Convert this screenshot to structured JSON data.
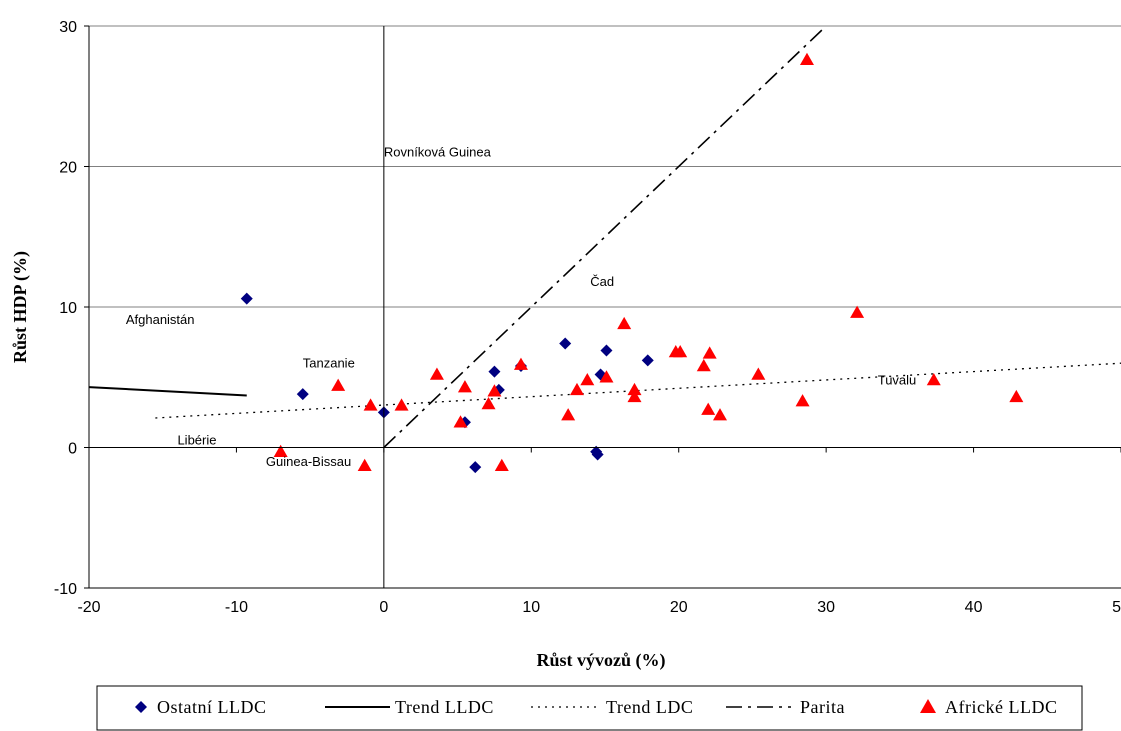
{
  "chart_data": {
    "type": "scatter",
    "xlabel": "Růst vývozů (%)",
    "ylabel": "Růst HDP (%)",
    "xlim": [
      -20,
      50
    ],
    "ylim": [
      -10,
      30
    ],
    "xticks": [
      -20,
      -10,
      0,
      10,
      20,
      30,
      40,
      50
    ],
    "yticks": [
      -10,
      0,
      10,
      20,
      30
    ],
    "xtick_labels": [
      "-20",
      "-10",
      "0",
      "10",
      "20",
      "30",
      "40",
      "50"
    ],
    "ytick_labels": [
      "-10",
      "0",
      "10",
      "20",
      "30"
    ],
    "grid": "horizontal",
    "legend_position": "bottom",
    "colors": {
      "ostatni": "#000080",
      "africke": "#ff0000",
      "lines": "#000000"
    },
    "series": [
      {
        "name": "Ostatní LLDC",
        "marker": "diamond",
        "points": [
          [
            -9.3,
            10.6
          ],
          [
            -5.5,
            3.8
          ],
          [
            0,
            2.5
          ],
          [
            5.5,
            1.8
          ],
          [
            6.2,
            -1.4
          ],
          [
            7.5,
            5.4
          ],
          [
            7.8,
            4.1
          ],
          [
            9.3,
            5.8
          ],
          [
            12.3,
            7.4
          ],
          [
            14.4,
            -0.3
          ],
          [
            14.5,
            -0.5
          ],
          [
            14.7,
            5.2
          ],
          [
            15.1,
            6.9
          ],
          [
            17.9,
            6.2
          ]
        ]
      },
      {
        "name": "Trend LLDC",
        "line": "solid",
        "points": [
          [
            -20,
            4.3
          ],
          [
            -9.3,
            3.7
          ]
        ]
      },
      {
        "name": "Trend LDC",
        "line": "dotted",
        "points": [
          [
            -15.5,
            2.1
          ],
          [
            50,
            6.0
          ]
        ]
      },
      {
        "name": "Parita",
        "line": "dash-dot",
        "points": [
          [
            0,
            0
          ],
          [
            30,
            30
          ]
        ]
      },
      {
        "name": "Africké LLDC",
        "marker": "triangle",
        "points": [
          [
            -7,
            -0.3
          ],
          [
            -3.1,
            4.4
          ],
          [
            -1.3,
            -1.3
          ],
          [
            -0.9,
            3.0
          ],
          [
            1.2,
            3.0
          ],
          [
            3.6,
            5.2
          ],
          [
            5.2,
            1.8
          ],
          [
            5.5,
            4.3
          ],
          [
            7.1,
            3.1
          ],
          [
            7.5,
            4.0
          ],
          [
            8,
            -1.3
          ],
          [
            9.3,
            5.9
          ],
          [
            12.5,
            2.3
          ],
          [
            13.1,
            4.1
          ],
          [
            13.8,
            4.8
          ],
          [
            15.1,
            5.0
          ],
          [
            16.3,
            8.8
          ],
          [
            17,
            4.1
          ],
          [
            17,
            3.6
          ],
          [
            19.8,
            6.8
          ],
          [
            20.1,
            6.8
          ],
          [
            21.7,
            5.8
          ],
          [
            22,
            2.7
          ],
          [
            22.1,
            6.7
          ],
          [
            22.8,
            2.3
          ],
          [
            25.4,
            5.2
          ],
          [
            28.4,
            3.3
          ],
          [
            28.7,
            27.6
          ],
          [
            32.1,
            9.6
          ],
          [
            37.3,
            4.8
          ],
          [
            42.9,
            3.6
          ]
        ]
      }
    ],
    "annotations": [
      {
        "text": "Rovníková Guinea",
        "x": 0,
        "y": 20.7
      },
      {
        "text": "Čad",
        "x": 14,
        "y": 11.5
      },
      {
        "text": "Afghanistán",
        "x": -17.5,
        "y": 8.8
      },
      {
        "text": "Tanzanie",
        "x": -5.5,
        "y": 5.7
      },
      {
        "text": "Tuvalu",
        "x": 33.5,
        "y": 4.5
      },
      {
        "text": "Libérie",
        "x": -14,
        "y": 0.2
      },
      {
        "text": "Guinea-Bissau",
        "x": -8,
        "y": -1.3
      }
    ]
  }
}
